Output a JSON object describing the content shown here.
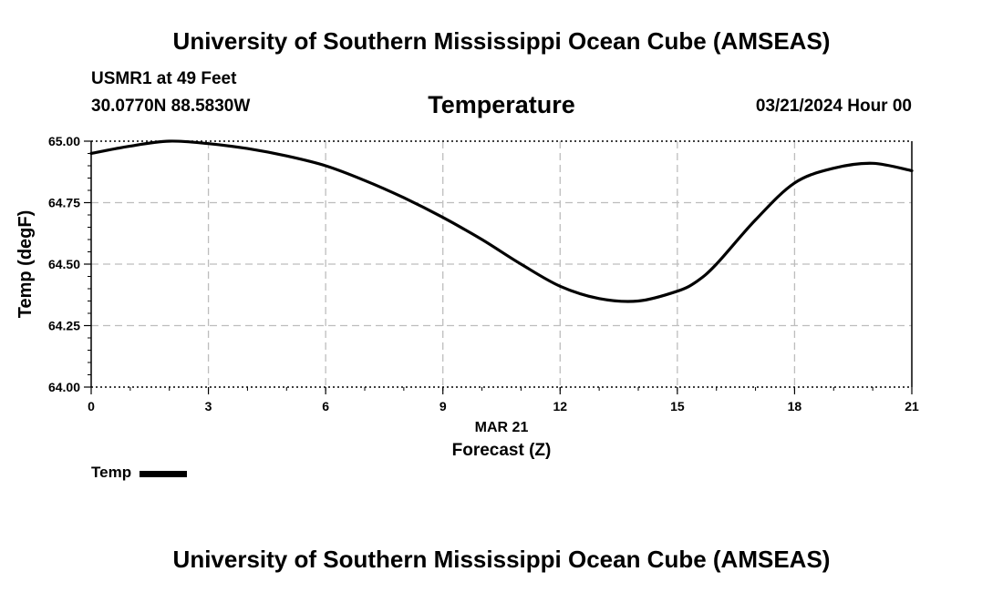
{
  "header": {
    "title": "University of Southern Mississippi Ocean Cube (AMSEAS)",
    "station": "USMR1 at 49 Feet",
    "coordinates": "30.0770N  88.5830W",
    "chart_title": "Temperature",
    "datetime": "03/21/2024 Hour 00"
  },
  "footer": {
    "title": "University of Southern Mississippi Ocean Cube (AMSEAS)"
  },
  "legend": {
    "label": "Temp",
    "color": "#000000"
  },
  "chart_data": {
    "type": "line",
    "title": "Temperature",
    "xlabel": "Forecast (Z)",
    "xlabel_date": "MAR 21",
    "ylabel": "Temp (degF)",
    "xlim": [
      0,
      21
    ],
    "ylim": [
      64.0,
      65.0
    ],
    "xticks": [
      "0",
      "3",
      "6",
      "9",
      "12",
      "15",
      "18",
      "21"
    ],
    "yticks": [
      "64.00",
      "64.25",
      "64.50",
      "64.75",
      "65.00"
    ],
    "grid": true,
    "series": [
      {
        "name": "Temp",
        "color": "#000000",
        "x": [
          0,
          1,
          2,
          3,
          4,
          5,
          6,
          7,
          8,
          9,
          10,
          11,
          12,
          13,
          14,
          15,
          15.5,
          16,
          17,
          18,
          19,
          20,
          21
        ],
        "y": [
          64.95,
          64.98,
          65.0,
          64.99,
          64.97,
          64.94,
          64.9,
          64.84,
          64.77,
          64.69,
          64.6,
          64.5,
          64.41,
          64.36,
          64.35,
          64.39,
          64.43,
          64.5,
          64.68,
          64.83,
          64.89,
          64.91,
          64.88
        ]
      }
    ]
  }
}
